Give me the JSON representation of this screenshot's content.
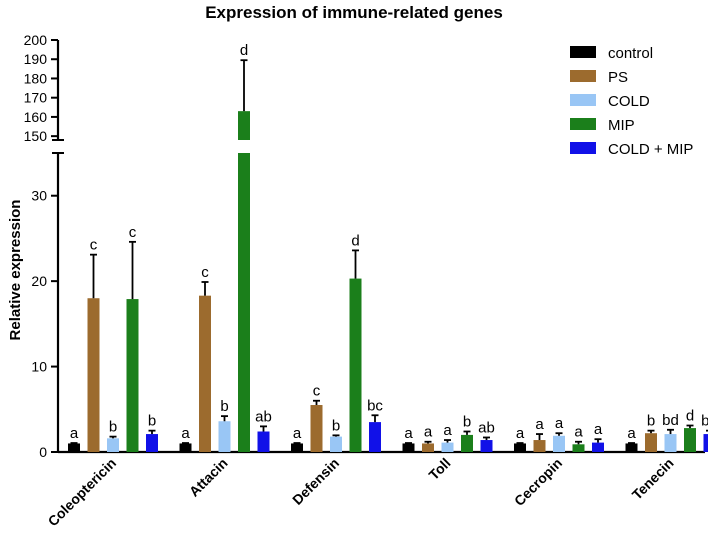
{
  "chart_data": {
    "type": "bar",
    "title": "Expression of immune-related genes",
    "xlabel": "",
    "ylabel": "Relative expression",
    "axis_break": {
      "lower": [
        0,
        35
      ],
      "upper": [
        148,
        200
      ]
    },
    "lower_ticks": [
      0,
      10,
      20,
      30
    ],
    "upper_ticks": [
      150,
      160,
      170,
      180,
      190,
      200
    ],
    "legend_position": "top-right",
    "categories": [
      "Coleoptericin",
      "Attacin",
      "Defensin",
      "Toll",
      "Cecropin",
      "Tenecin"
    ],
    "series": [
      {
        "name": "control",
        "color": "#000000",
        "values": [
          1.0,
          1.0,
          1.0,
          1.0,
          1.0,
          1.0
        ],
        "errors": [
          0.05,
          0.05,
          0.05,
          0.05,
          0.05,
          0.05
        ],
        "labels": [
          "a",
          "a",
          "a",
          "a",
          "a",
          "a"
        ]
      },
      {
        "name": "PS",
        "color": "#9c6b2e",
        "values": [
          18.0,
          18.3,
          5.5,
          1.0,
          1.4,
          2.2
        ],
        "errors": [
          5.1,
          1.6,
          0.5,
          0.2,
          0.7,
          0.3
        ],
        "labels": [
          "c",
          "c",
          "c",
          "a",
          "a",
          "b"
        ]
      },
      {
        "name": "COLD",
        "color": "#99c6f5",
        "values": [
          1.6,
          3.6,
          1.8,
          1.1,
          1.9,
          2.1
        ],
        "errors": [
          0.2,
          0.6,
          0.15,
          0.3,
          0.3,
          0.5
        ],
        "labels": [
          "b",
          "b",
          "b",
          "a",
          "a",
          "bd"
        ]
      },
      {
        "name": "MIP",
        "color": "#1b7f1b",
        "values": [
          17.9,
          163,
          20.3,
          2.0,
          0.9,
          2.8
        ],
        "errors": [
          6.7,
          26.5,
          3.3,
          0.4,
          0.3,
          0.3
        ],
        "labels": [
          "c",
          "d",
          "d",
          "b",
          "a",
          "d"
        ]
      },
      {
        "name": "COLD + MIP",
        "color": "#1111e8",
        "values": [
          2.1,
          2.4,
          3.5,
          1.4,
          1.1,
          2.1
        ],
        "errors": [
          0.4,
          0.6,
          0.8,
          0.3,
          0.4,
          0.4
        ],
        "labels": [
          "b",
          "ab",
          "bc",
          "ab",
          "a",
          "bd"
        ]
      }
    ]
  }
}
